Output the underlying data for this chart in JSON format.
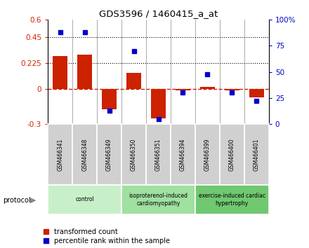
{
  "title": "GDS3596 / 1460415_a_at",
  "samples": [
    "GSM466341",
    "GSM466348",
    "GSM466349",
    "GSM466350",
    "GSM466351",
    "GSM466394",
    "GSM466399",
    "GSM466400",
    "GSM466401"
  ],
  "transformed_count": [
    0.29,
    0.3,
    -0.17,
    0.14,
    -0.25,
    -0.01,
    0.02,
    -0.01,
    -0.07
  ],
  "percentile_rank": [
    88,
    88,
    13,
    70,
    5,
    30,
    48,
    30,
    22
  ],
  "ylim_left": [
    -0.3,
    0.6
  ],
  "ylim_right": [
    0,
    100
  ],
  "yticks_left": [
    -0.3,
    0,
    0.225,
    0.45,
    0.6
  ],
  "yticks_right": [
    0,
    25,
    50,
    75,
    100
  ],
  "hlines": [
    0.225,
    0.45
  ],
  "group_defs": [
    {
      "start": 0,
      "end": 2,
      "label": "control",
      "color": "#c8f0c8"
    },
    {
      "start": 3,
      "end": 5,
      "label": "isoproterenol-induced\ncardiomyopathy",
      "color": "#a0e0a0"
    },
    {
      "start": 6,
      "end": 8,
      "label": "exercise-induced cardiac\nhypertrophy",
      "color": "#70c870"
    }
  ],
  "bar_color": "#cc2200",
  "dot_color": "#0000cc",
  "zero_line_color": "#cc2200",
  "legend_items": [
    "transformed count",
    "percentile rank within the sample"
  ],
  "bar_width": 0.6,
  "sample_box_color": "#d0d0d0",
  "separator_color": "#888888"
}
